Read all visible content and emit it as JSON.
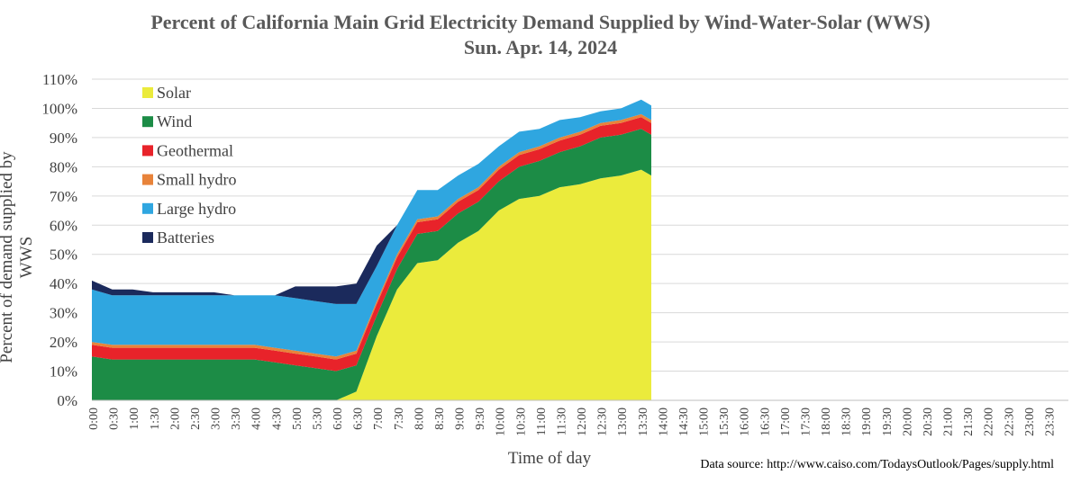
{
  "title": "Percent of California Main Grid Electricity Demand Supplied by Wind-Water-Solar (WWS)",
  "subtitle": "Sun. Apr. 14, 2024",
  "source_note": "Data source: http://www.caiso.com/TodaysOutlook/Pages/supply.html",
  "chart_data": {
    "type": "area",
    "stacked": true,
    "title": "Percent of California Main Grid Electricity Demand Supplied by Wind-Water-Solar (WWS)",
    "subtitle": "Sun. Apr. 14, 2024",
    "xlabel": "Time of day",
    "ylabel": "Percent of demand supplied by WWS",
    "ylim": [
      0,
      110
    ],
    "ytick_step": 10,
    "ytick_suffix": "%",
    "grid": "horizontal",
    "legend_position": "top-left",
    "x_ticks": [
      "0:00",
      "0:30",
      "1:00",
      "1:30",
      "2:00",
      "2:30",
      "3:00",
      "3:30",
      "4:00",
      "4:30",
      "5:00",
      "5:30",
      "6:00",
      "6:30",
      "7:00",
      "7:30",
      "8:00",
      "8:30",
      "9:00",
      "9:30",
      "10:00",
      "10:30",
      "11:00",
      "11:30",
      "12:00",
      "12:30",
      "13:00",
      "13:30",
      "14:00",
      "14:30",
      "15:00",
      "15:30",
      "16:00",
      "16:30",
      "17:00",
      "17:30",
      "18:00",
      "18:30",
      "19:00",
      "19:30",
      "20:00",
      "20:30",
      "21:00",
      "21:30",
      "22:00",
      "22:30",
      "23:00",
      "23:30"
    ],
    "x": [
      "0:00",
      "0:30",
      "1:00",
      "1:30",
      "2:00",
      "2:30",
      "3:00",
      "3:30",
      "4:00",
      "4:30",
      "5:00",
      "5:30",
      "6:00",
      "6:30",
      "7:00",
      "7:30",
      "8:00",
      "8:30",
      "9:00",
      "9:30",
      "10:00",
      "10:30",
      "11:00",
      "11:30",
      "12:00",
      "12:30",
      "13:00",
      "13:30",
      "13:45"
    ],
    "series": [
      {
        "name": "Solar",
        "color": "#EBEB3C",
        "values": [
          0,
          0,
          0,
          0,
          0,
          0,
          0,
          0,
          0,
          0,
          0,
          0,
          0,
          3,
          22,
          38,
          47,
          48,
          54,
          58,
          65,
          69,
          70,
          73,
          74,
          76,
          77,
          79,
          77
        ]
      },
      {
        "name": "Wind",
        "color": "#1C8C46",
        "values": [
          15,
          14,
          14,
          14,
          14,
          14,
          14,
          14,
          14,
          13,
          12,
          11,
          10,
          9,
          7,
          7,
          10,
          10,
          10,
          10,
          10,
          11,
          12,
          12,
          13,
          14,
          14,
          14,
          14
        ]
      },
      {
        "name": "Geothermal",
        "color": "#E8232A",
        "values": [
          4,
          4,
          4,
          4,
          4,
          4,
          4,
          4,
          4,
          4,
          4,
          4,
          4,
          4,
          4,
          4,
          4,
          4,
          4,
          4,
          4,
          4,
          4,
          4,
          4,
          4,
          4,
          4,
          4
        ]
      },
      {
        "name": "Small hydro",
        "color": "#E8833A",
        "values": [
          1,
          1,
          1,
          1,
          1,
          1,
          1,
          1,
          1,
          1,
          1,
          1,
          1,
          1,
          1,
          1,
          1,
          1,
          1,
          1,
          1,
          1,
          1,
          1,
          1,
          1,
          1,
          1,
          1
        ]
      },
      {
        "name": "Large hydro",
        "color": "#2FA6E0",
        "values": [
          18,
          17,
          17,
          17,
          17,
          17,
          17,
          17,
          17,
          18,
          18,
          18,
          18,
          16,
          12,
          10,
          10,
          9,
          8,
          8,
          7,
          7,
          6,
          6,
          5,
          4,
          4,
          5,
          5
        ]
      },
      {
        "name": "Batteries",
        "color": "#1B2A5C",
        "values": [
          3,
          2,
          2,
          1,
          1,
          1,
          1,
          0,
          0,
          0,
          4,
          5,
          6,
          7,
          7,
          0,
          0,
          0,
          0,
          0,
          0,
          0,
          0,
          0,
          0,
          0,
          0,
          0,
          0
        ]
      }
    ]
  }
}
